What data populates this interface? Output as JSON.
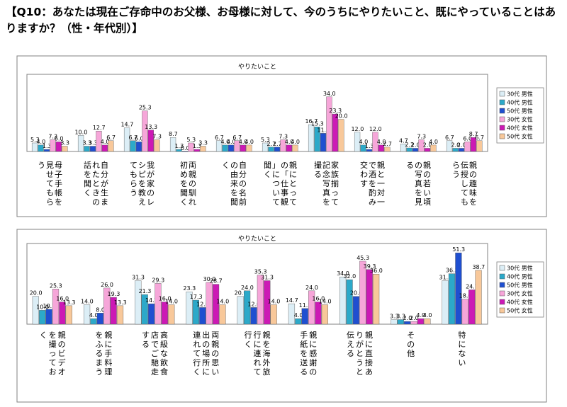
{
  "title": "【Q10：あなたは現在ご存命中のお父様、お母様に対して、今のうちにやりたいこと、既にやっていることはありますか？（性・年代別）】",
  "series_colors": [
    "#DCEEF6",
    "#2CA9C9",
    "#1F4FD0",
    "#F6A6D9",
    "#CC19B5",
    "#F8C89A"
  ],
  "chart_data": [
    {
      "type": "bar",
      "title": "やりたいこと",
      "legend_position": "right",
      "grid": false,
      "ylim": [
        0,
        48
      ],
      "categories": [
        "母子手帳を見せてもらう",
        "自分が生まれたときの話を聞く",
        "我が家のレシピを教えてもらう",
        "両親の馴れ初めを聞く",
        "自分の名前の由来を聞く",
        "親にとっての「仕事観」について聞く",
        "家族揃って記念写真を撮る",
        "親と一対一で酒を酌み交わす",
        "親の若い頃の写真を見る",
        "親の趣味を伝授してもらう"
      ],
      "series": [
        {
          "name": "30代 男性",
          "values": [
            5.3,
            10.0,
            14.7,
            8.7,
            6.7,
            5.3,
            16.7,
            12.0,
            4.7,
            6.7
          ]
        },
        {
          "name": "40代 男性",
          "values": [
            4.0,
            3.3,
            6.7,
            1.3,
            4.0,
            2.7,
            15.3,
            4.0,
            2.2,
            2.0
          ]
        },
        {
          "name": "50代 男性",
          "values": [
            1.3,
            3.3,
            6.0,
            0.0,
            4.0,
            2.7,
            11.3,
            1.3,
            2.0,
            2.0
          ]
        },
        {
          "name": "30代 女性",
          "values": [
            7.3,
            12.7,
            25.3,
            5.3,
            6.7,
            7.3,
            34.0,
            12.0,
            7.3,
            6.0
          ]
        },
        {
          "name": "40代 女性",
          "values": [
            6.0,
            4.0,
            13.3,
            1.3,
            4.0,
            4.0,
            23.3,
            4.0,
            2.0,
            8.7
          ]
        },
        {
          "name": "50代 女性",
          "values": [
            3.3,
            6.7,
            7.3,
            3.3,
            4.0,
            4.0,
            20.0,
            2.7,
            4.0,
            6.7
          ]
        }
      ]
    },
    {
      "type": "bar",
      "title": "やりたいこと",
      "legend_position": "right",
      "grid": false,
      "ylim": [
        0,
        58
      ],
      "categories": [
        "親のビデオを撮っておく",
        "親に手料理をふるまう",
        "高級な飲食店でご馳走する",
        "両親の思い出の場所に連れて行く",
        "親を海外旅行に連れて行く",
        "親に感謝の手紙を送る",
        "親に直接ありがとうと伝える",
        "その他",
        "特にない"
      ],
      "series": [
        {
          "name": "30代 男性",
          "values": [
            20.0,
            14.0,
            31.3,
            23.3,
            20.0,
            14.7,
            34.0,
            3.3,
            31.3
          ]
        },
        {
          "name": "40代 男性",
          "values": [
            10.0,
            4.0,
            21.3,
            17.3,
            24.0,
            4.0,
            32.0,
            3.3,
            36.3
          ]
        },
        {
          "name": "50代 男性",
          "values": [
            10.7,
            8.0,
            14.7,
            12.0,
            12.0,
            11.3,
            20.0,
            2.0,
            51.3
          ]
        },
        {
          "name": "30代 女性",
          "values": [
            25.3,
            26.0,
            29.3,
            30.0,
            35.3,
            24.0,
            45.3,
            2.0,
            18.0
          ]
        },
        {
          "name": "40代 女性",
          "values": [
            16.0,
            19.3,
            16.0,
            28.7,
            31.3,
            16.0,
            39.3,
            4.0,
            24.7
          ]
        },
        {
          "name": "50代 女性",
          "values": [
            13.3,
            13.3,
            14.0,
            14.0,
            14.0,
            14.0,
            36.0,
            4.0,
            38.7
          ]
        }
      ]
    }
  ]
}
